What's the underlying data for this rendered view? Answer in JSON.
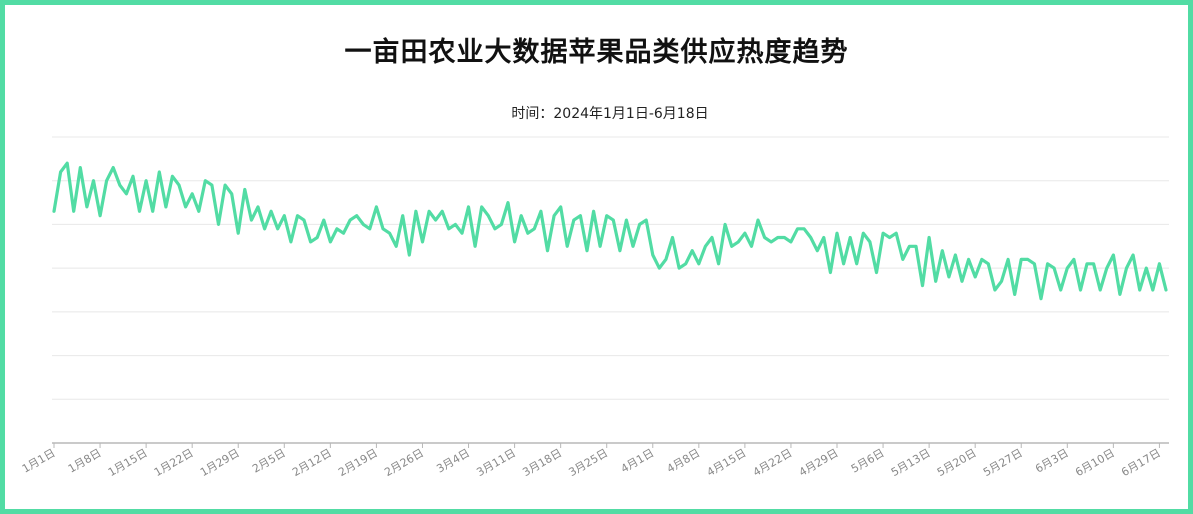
{
  "chart_data": {
    "type": "line",
    "title": "一亩田农业大数据苹果品类供应热度趋势",
    "subtitle": "时间：2024年1月1日-6月18日",
    "xlabel": "",
    "ylabel": "",
    "ylim": [
      0,
      7
    ],
    "grid": true,
    "colors": {
      "line": "#52dca4",
      "frame": "#52dca4",
      "grid": "#e8e8e8",
      "axis": "#b8b8b8",
      "tick": "#888888"
    },
    "tick_labels": [
      "1月1日",
      "1月8日",
      "1月15日",
      "1月22日",
      "1月29日",
      "2月5日",
      "2月12日",
      "2月19日",
      "2月26日",
      "3月4日",
      "3月11日",
      "3月18日",
      "3月25日",
      "4月1日",
      "4月8日",
      "4月15日",
      "4月22日",
      "4月29日",
      "5月6日",
      "5月13日",
      "5月20日",
      "5月27日",
      "6月3日",
      "6月10日",
      "6月17日"
    ],
    "series": [
      {
        "values": [
          5.3,
          6.2,
          6.4,
          5.3,
          6.3,
          5.4,
          6.0,
          5.2,
          6.0,
          6.3,
          5.9,
          5.7,
          6.1,
          5.3,
          6.0,
          5.3,
          6.2,
          5.4,
          6.1,
          5.9,
          5.4,
          5.7,
          5.3,
          6.0,
          5.9,
          5.0,
          5.9,
          5.7,
          4.8,
          5.8,
          5.1,
          5.4,
          4.9,
          5.3,
          4.9,
          5.2,
          4.6,
          5.2,
          5.1,
          4.6,
          4.7,
          5.1,
          4.6,
          4.9,
          4.8,
          5.1,
          5.2,
          5.0,
          4.9,
          5.4,
          4.9,
          4.8,
          4.5,
          5.2,
          4.3,
          5.3,
          4.6,
          5.3,
          5.1,
          5.3,
          4.9,
          5.0,
          4.8,
          5.4,
          4.5,
          5.4,
          5.2,
          4.9,
          5.0,
          5.5,
          4.6,
          5.2,
          4.8,
          4.9,
          5.3,
          4.4,
          5.2,
          5.4,
          4.5,
          5.1,
          5.2,
          4.4,
          5.3,
          4.5,
          5.2,
          5.1,
          4.4,
          5.1,
          4.5,
          5.0,
          5.1,
          4.3,
          4.0,
          4.2,
          4.7,
          4.0,
          4.1,
          4.4,
          4.1,
          4.5,
          4.7,
          4.1,
          5.0,
          4.5,
          4.6,
          4.8,
          4.5,
          5.1,
          4.7,
          4.6,
          4.7,
          4.7,
          4.6,
          4.9,
          4.9,
          4.7,
          4.4,
          4.7,
          3.9,
          4.8,
          4.1,
          4.7,
          4.1,
          4.8,
          4.6,
          3.9,
          4.8,
          4.7,
          4.8,
          4.2,
          4.5,
          4.5,
          3.6,
          4.7,
          3.7,
          4.4,
          3.8,
          4.3,
          3.7,
          4.2,
          3.8,
          4.2,
          4.1,
          3.5,
          3.7,
          4.2,
          3.4,
          4.2,
          4.2,
          4.1,
          3.3,
          4.1,
          4.0,
          3.5,
          4.0,
          4.2,
          3.5,
          4.1,
          4.1,
          3.5,
          4.0,
          4.3,
          3.4,
          4.0,
          4.3,
          3.5,
          4.0,
          3.5,
          4.1,
          3.5
        ]
      }
    ]
  }
}
